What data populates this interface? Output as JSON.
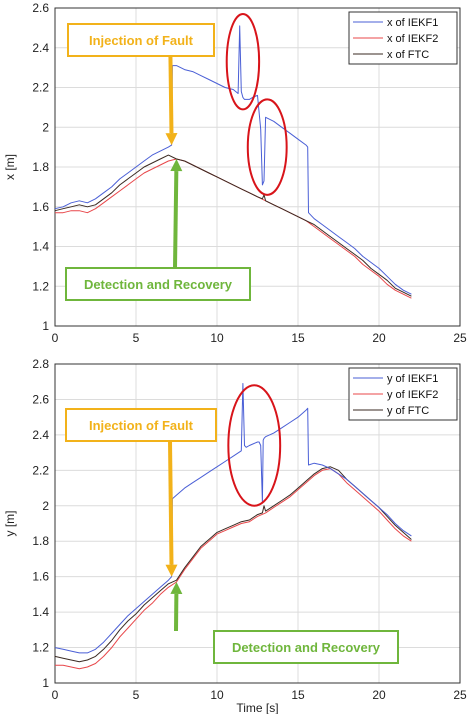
{
  "chart_data": [
    {
      "type": "line",
      "ylabel": "x [m]",
      "xlabel": "",
      "xlim": [
        0,
        25
      ],
      "ylim": [
        1,
        2.6
      ],
      "xticks": [
        0,
        5,
        10,
        15,
        20,
        25
      ],
      "yticks": [
        1,
        1.2,
        1.4,
        1.6,
        1.8,
        2,
        2.2,
        2.4,
        2.6
      ],
      "grid": true,
      "legend": "top-right",
      "colors": {
        "iekf1": "#4a5fd6",
        "iekf2": "#e8474a",
        "ftc": "#3a2a22"
      },
      "series": [
        {
          "name": "x of IEKF1",
          "key": "iekf1",
          "x": [
            0,
            0.5,
            1,
            1.5,
            2,
            2.5,
            3,
            3.5,
            4,
            4.5,
            5,
            5.5,
            6,
            6.5,
            7,
            7.2,
            7.25,
            7.5,
            8,
            8.5,
            9,
            9.5,
            10,
            10.5,
            11,
            11.3,
            11.4,
            11.5,
            11.6,
            11.7,
            12,
            12.2,
            12.5,
            12.7,
            12.8,
            12.9,
            13,
            13.5,
            14,
            14.5,
            15,
            15.5,
            15.6,
            15.65,
            16,
            16.5,
            17,
            17.5,
            18,
            18.5,
            19,
            19.5,
            20,
            20.5,
            21,
            21.5,
            22
          ],
          "y": [
            1.59,
            1.6,
            1.62,
            1.63,
            1.62,
            1.64,
            1.67,
            1.7,
            1.74,
            1.77,
            1.8,
            1.83,
            1.86,
            1.88,
            1.9,
            1.91,
            2.31,
            2.31,
            2.29,
            2.28,
            2.26,
            2.24,
            2.22,
            2.2,
            2.19,
            2.17,
            2.51,
            2.18,
            2.15,
            2.14,
            2.14,
            2.15,
            2.16,
            1.99,
            1.71,
            1.73,
            2.05,
            2.03,
            2.0,
            1.97,
            1.94,
            1.91,
            1.9,
            1.57,
            1.54,
            1.51,
            1.48,
            1.45,
            1.42,
            1.39,
            1.35,
            1.32,
            1.29,
            1.25,
            1.21,
            1.18,
            1.16
          ]
        },
        {
          "name": "x of IEKF2",
          "key": "iekf2",
          "x": [
            0,
            0.5,
            1,
            1.5,
            2,
            2.5,
            3,
            3.5,
            4,
            4.5,
            5,
            5.5,
            6,
            6.5,
            7,
            7.5,
            8,
            8.5,
            9,
            9.5,
            10,
            10.5,
            11,
            11.5,
            12,
            12.5,
            13,
            13.5,
            14,
            14.5,
            15,
            15.5,
            16,
            16.5,
            17,
            17.5,
            18,
            18.5,
            19,
            19.5,
            20,
            20.5,
            21,
            21.5,
            22
          ],
          "y": [
            1.57,
            1.57,
            1.58,
            1.58,
            1.57,
            1.59,
            1.62,
            1.65,
            1.68,
            1.71,
            1.74,
            1.77,
            1.79,
            1.81,
            1.83,
            1.84,
            1.83,
            1.81,
            1.79,
            1.77,
            1.75,
            1.73,
            1.71,
            1.69,
            1.67,
            1.65,
            1.63,
            1.61,
            1.59,
            1.57,
            1.55,
            1.53,
            1.5,
            1.47,
            1.44,
            1.41,
            1.38,
            1.35,
            1.31,
            1.28,
            1.25,
            1.21,
            1.18,
            1.16,
            1.14
          ]
        },
        {
          "name": "x of FTC",
          "key": "ftc",
          "x": [
            0,
            0.5,
            1,
            1.5,
            2,
            2.5,
            3,
            3.5,
            4,
            4.5,
            5,
            5.5,
            6,
            6.5,
            7,
            7.5,
            8,
            8.5,
            9,
            9.5,
            10,
            10.5,
            11,
            11.5,
            12,
            12.5,
            12.8,
            12.9,
            13,
            13.5,
            14,
            14.5,
            15,
            15.5,
            16,
            16.5,
            17,
            17.5,
            18,
            18.5,
            19,
            19.5,
            20,
            20.5,
            21,
            21.5,
            22
          ],
          "y": [
            1.58,
            1.59,
            1.6,
            1.61,
            1.6,
            1.61,
            1.64,
            1.67,
            1.71,
            1.74,
            1.77,
            1.8,
            1.82,
            1.84,
            1.86,
            1.84,
            1.83,
            1.81,
            1.79,
            1.77,
            1.75,
            1.73,
            1.71,
            1.69,
            1.67,
            1.65,
            1.64,
            1.66,
            1.63,
            1.61,
            1.59,
            1.57,
            1.55,
            1.53,
            1.51,
            1.48,
            1.45,
            1.42,
            1.39,
            1.36,
            1.33,
            1.29,
            1.26,
            1.23,
            1.19,
            1.17,
            1.15
          ]
        }
      ],
      "annotations": [
        {
          "text": "Injection of Fault",
          "color": "#f2b21a",
          "target": [
            7.2,
            1.91
          ]
        },
        {
          "text": "Detection and Recovery",
          "color": "#6fb63c",
          "target": [
            7.5,
            1.84
          ]
        }
      ],
      "circles": [
        {
          "cx": 11.6,
          "cy": 2.33,
          "rx": 1.0,
          "ry": 0.24
        },
        {
          "cx": 13.1,
          "cy": 1.9,
          "rx": 1.2,
          "ry": 0.24
        }
      ]
    },
    {
      "type": "line",
      "ylabel": "y [m]",
      "xlabel": "Time [s]",
      "xlim": [
        0,
        25
      ],
      "ylim": [
        1,
        2.8
      ],
      "xticks": [
        0,
        5,
        10,
        15,
        20,
        25
      ],
      "yticks": [
        1,
        1.2,
        1.4,
        1.6,
        1.8,
        2,
        2.2,
        2.4,
        2.6,
        2.8
      ],
      "grid": true,
      "legend": "top-right",
      "colors": {
        "iekf1": "#4a5fd6",
        "iekf2": "#e8474a",
        "ftc": "#3a2a22"
      },
      "series": [
        {
          "name": "y of IEKF1",
          "key": "iekf1",
          "x": [
            0,
            0.5,
            1,
            1.5,
            2,
            2.5,
            3,
            3.5,
            4,
            4.5,
            5,
            5.5,
            6,
            6.5,
            7,
            7.2,
            7.25,
            7.5,
            8,
            8.5,
            9,
            9.5,
            10,
            10.5,
            11,
            11.5,
            11.6,
            11.7,
            11.8,
            12,
            12.5,
            12.6,
            12.7,
            12.8,
            12.85,
            12.9,
            13,
            13.5,
            14,
            14.5,
            15,
            15.5,
            15.6,
            15.65,
            16,
            16.5,
            17,
            17.5,
            18,
            18.5,
            19,
            19.5,
            20,
            20.5,
            21,
            21.5,
            22
          ],
          "y": [
            1.2,
            1.19,
            1.18,
            1.17,
            1.17,
            1.19,
            1.23,
            1.28,
            1.33,
            1.38,
            1.42,
            1.46,
            1.5,
            1.54,
            1.58,
            1.6,
            2.04,
            2.06,
            2.1,
            2.13,
            2.16,
            2.19,
            2.22,
            2.25,
            2.28,
            2.31,
            2.69,
            2.34,
            2.33,
            2.34,
            2.36,
            2.36,
            2.34,
            2.02,
            2.37,
            2.38,
            2.39,
            2.41,
            2.44,
            2.47,
            2.5,
            2.54,
            2.55,
            2.23,
            2.24,
            2.23,
            2.21,
            2.18,
            2.15,
            2.11,
            2.07,
            2.03,
            1.99,
            1.95,
            1.9,
            1.86,
            1.83
          ]
        },
        {
          "name": "y of IEKF2",
          "key": "iekf2",
          "x": [
            0,
            0.5,
            1,
            1.5,
            2,
            2.5,
            3,
            3.5,
            4,
            4.5,
            5,
            5.5,
            6,
            6.5,
            7,
            7.5,
            8,
            8.5,
            9,
            9.5,
            10,
            10.5,
            11,
            11.5,
            12,
            12.5,
            13,
            13.5,
            14,
            14.5,
            15,
            15.5,
            16,
            16.5,
            17,
            17.5,
            18,
            18.5,
            19,
            19.5,
            20,
            20.5,
            21,
            21.5,
            22
          ],
          "y": [
            1.1,
            1.1,
            1.09,
            1.08,
            1.09,
            1.11,
            1.15,
            1.2,
            1.26,
            1.31,
            1.36,
            1.41,
            1.45,
            1.5,
            1.54,
            1.57,
            1.64,
            1.7,
            1.76,
            1.8,
            1.84,
            1.86,
            1.88,
            1.9,
            1.91,
            1.94,
            1.96,
            1.99,
            2.02,
            2.05,
            2.09,
            2.13,
            2.17,
            2.2,
            2.21,
            2.18,
            2.13,
            2.09,
            2.05,
            2.01,
            1.97,
            1.92,
            1.87,
            1.83,
            1.8
          ]
        },
        {
          "name": "y of FTC",
          "key": "ftc",
          "x": [
            0,
            0.5,
            1,
            1.5,
            2,
            2.5,
            3,
            3.5,
            4,
            4.5,
            5,
            5.5,
            6,
            6.5,
            7,
            7.5,
            8,
            8.5,
            9,
            9.5,
            10,
            10.5,
            11,
            11.5,
            12,
            12.5,
            12.8,
            12.9,
            13,
            13.5,
            14,
            14.5,
            15,
            15.5,
            16,
            16.5,
            17,
            17.5,
            18,
            18.5,
            19,
            19.5,
            20,
            20.5,
            21,
            21.5,
            22
          ],
          "y": [
            1.15,
            1.14,
            1.13,
            1.12,
            1.13,
            1.15,
            1.19,
            1.24,
            1.3,
            1.35,
            1.39,
            1.44,
            1.48,
            1.52,
            1.56,
            1.58,
            1.65,
            1.71,
            1.77,
            1.81,
            1.85,
            1.87,
            1.89,
            1.91,
            1.92,
            1.95,
            1.96,
            2.0,
            1.97,
            2.0,
            2.03,
            2.06,
            2.1,
            2.14,
            2.18,
            2.21,
            2.22,
            2.2,
            2.15,
            2.11,
            2.07,
            2.03,
            1.99,
            1.94,
            1.89,
            1.85,
            1.81
          ]
        }
      ],
      "annotations": [
        {
          "text": "Injection of Fault",
          "color": "#f2b21a",
          "target": [
            7.2,
            1.6
          ]
        },
        {
          "text": "Detection and Recovery",
          "color": "#6fb63c",
          "target": [
            7.5,
            1.57
          ]
        }
      ],
      "circles": [
        {
          "cx": 12.3,
          "cy": 2.34,
          "rx": 1.6,
          "ry": 0.34
        }
      ]
    }
  ]
}
